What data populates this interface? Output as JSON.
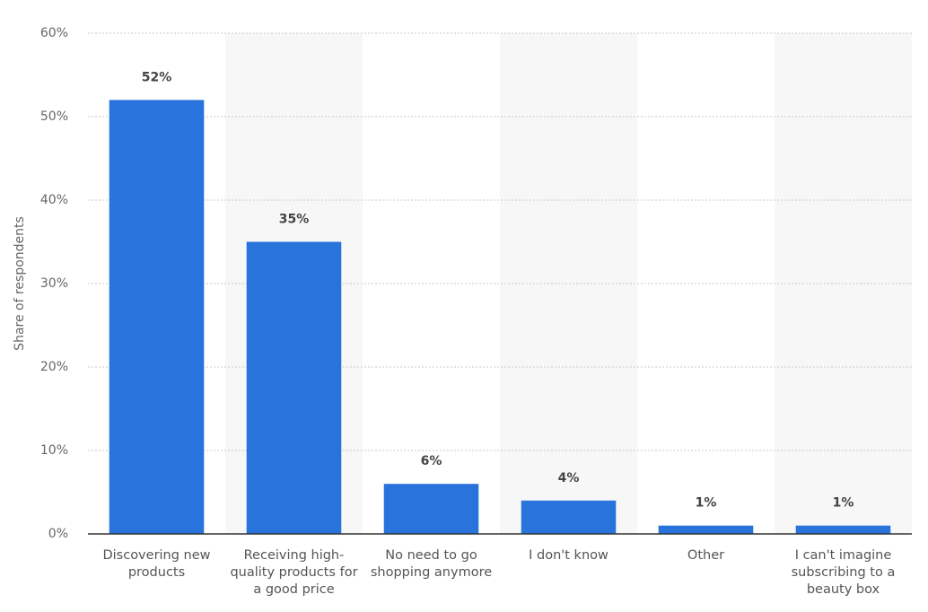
{
  "chart_data": {
    "type": "bar",
    "y_label": "Share of respondents",
    "categories": [
      "Discovering new products",
      "Receiving high-quality products for a good price",
      "No need to go shopping anymore",
      "I don't know",
      "Other",
      "I can't imagine subscribing to a beauty box"
    ],
    "values": [
      52,
      35,
      6,
      4,
      1,
      1
    ],
    "value_labels": [
      "52%",
      "35%",
      "6%",
      "4%",
      "1%",
      "1%"
    ],
    "color": "#2873dc",
    "ylim": [
      0,
      60
    ],
    "yticks": [
      {
        "value": 0,
        "label": "0%"
      },
      {
        "value": 10,
        "label": "10%"
      },
      {
        "value": 20,
        "label": "20%"
      },
      {
        "value": 30,
        "label": "30%"
      },
      {
        "value": 40,
        "label": "40%"
      },
      {
        "value": 50,
        "label": "50%"
      },
      {
        "value": 60,
        "label": "60%"
      }
    ],
    "grid": true
  }
}
